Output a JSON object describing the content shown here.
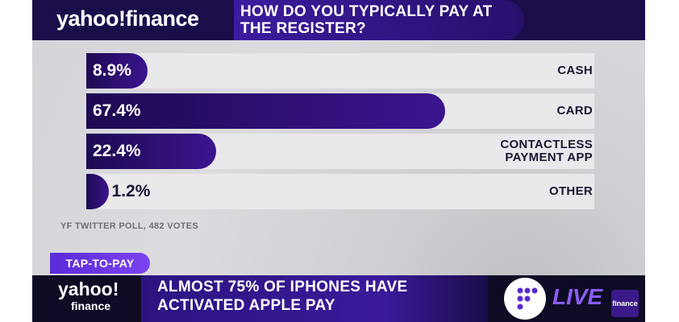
{
  "header": {
    "logo": "yahoo!finance"
  },
  "chart_data": {
    "type": "bar",
    "orientation": "horizontal",
    "title": "HOW DO YOU TYPICALLY PAY AT THE REGISTER?",
    "categories": [
      "CASH",
      "CARD",
      "CONTACTLESS PAYMENT APP",
      "OTHER"
    ],
    "values": [
      8.9,
      67.4,
      22.4,
      1.2
    ],
    "value_labels": [
      "8.9%",
      "67.4%",
      "22.4%",
      "1.2%"
    ],
    "color": "#3b148f",
    "source": "YF TWITTER POLL, 482 VOTES"
  },
  "lower_third": {
    "tag": "TAP-TO-PAY",
    "logo_top": "yahoo!",
    "logo_bottom": "finance",
    "headline": "ALMOST 75% OF IPHONES HAVE ACTIVATED APPLE PAY",
    "live": "LIVE",
    "thumbnail": "finance"
  }
}
